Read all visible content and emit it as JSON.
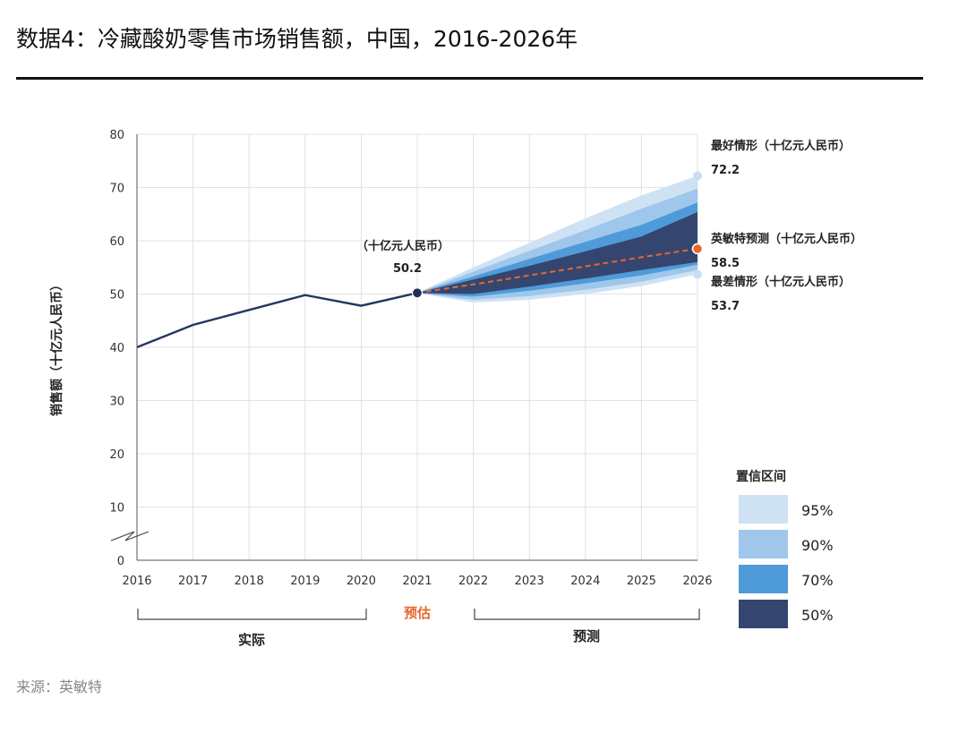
{
  "title": "数据4：冷藏酸奶零售市场销售额，中国，2016-2026年",
  "source": "来源：英敏特",
  "chart_data": {
    "type": "line",
    "ylabel": "销售额（十亿元人民币）",
    "x": [
      2016,
      2017,
      2018,
      2019,
      2020,
      2021,
      2022,
      2023,
      2024,
      2025,
      2026
    ],
    "y_ticks": [
      0,
      10,
      20,
      30,
      40,
      50,
      60,
      70,
      80
    ],
    "ylim": [
      0,
      80
    ],
    "grid": true,
    "actual": {
      "years": [
        2016,
        2017,
        2018,
        2019,
        2020,
        2021
      ],
      "values": [
        40.0,
        44.2,
        47.0,
        49.8,
        47.8,
        50.2
      ]
    },
    "forecast": {
      "years": [
        2021,
        2022,
        2023,
        2024,
        2025,
        2026
      ],
      "central": [
        50.2,
        51.8,
        53.5,
        55.2,
        56.9,
        58.5
      ],
      "bands": [
        {
          "level": "95%",
          "low": [
            50.2,
            48.4,
            48.9,
            50.0,
            51.5,
            53.7
          ],
          "high": [
            50.2,
            55.0,
            59.6,
            64.2,
            68.5,
            72.2
          ],
          "color": "#cfe2f4"
        },
        {
          "level": "90%",
          "low": [
            50.2,
            48.9,
            49.6,
            50.8,
            52.3,
            54.5
          ],
          "high": [
            50.2,
            54.2,
            58.1,
            62.0,
            66.0,
            69.8
          ],
          "color": "#9fc6eb"
        },
        {
          "level": "70%",
          "low": [
            50.2,
            49.5,
            50.6,
            52.0,
            53.5,
            55.5
          ],
          "high": [
            50.2,
            53.3,
            56.6,
            59.8,
            63.0,
            67.2
          ],
          "color": "#4f9bd9"
        },
        {
          "level": "50%",
          "low": [
            50.2,
            50.0,
            51.4,
            52.9,
            54.5,
            56.0
          ],
          "high": [
            50.2,
            52.7,
            55.3,
            58.0,
            60.8,
            65.4
          ],
          "color": "#34466f"
        }
      ]
    },
    "point_2021": {
      "label": "（十亿元人民币）",
      "value": "50.2"
    },
    "annotations": {
      "best": {
        "label": "最好情形（十亿元人民币）",
        "value": "72.2"
      },
      "central": {
        "label": "英敏特预测（十亿元人民币）",
        "value": "58.5"
      },
      "worst": {
        "label": "最差情形（十亿元人民币）",
        "value": "53.7"
      }
    },
    "periods": {
      "actual": "实际",
      "estimate": "预估",
      "forecast": "预测"
    },
    "legend": {
      "title": "置信区间",
      "items": [
        "95%",
        "90%",
        "70%",
        "50%"
      ],
      "position": "bottom-right"
    },
    "colors": {
      "actual_line": "#26375e",
      "forecast_line": "#e8662c",
      "estimate_text": "#e8662c",
      "grid": "#e2e2e2"
    }
  }
}
